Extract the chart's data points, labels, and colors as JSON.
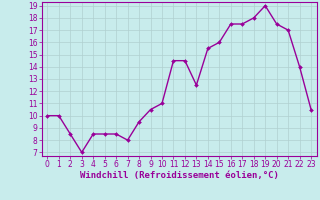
{
  "x": [
    0,
    1,
    2,
    3,
    4,
    5,
    6,
    7,
    8,
    9,
    10,
    11,
    12,
    13,
    14,
    15,
    16,
    17,
    18,
    19,
    20,
    21,
    22,
    23
  ],
  "y": [
    10,
    10,
    8.5,
    7,
    8.5,
    8.5,
    8.5,
    8,
    9.5,
    10.5,
    11,
    14.5,
    14.5,
    12.5,
    15.5,
    16,
    17.5,
    17.5,
    18,
    19,
    17.5,
    17,
    14,
    10.5
  ],
  "line_color": "#990099",
  "marker": "D",
  "marker_size": 2,
  "bg_color": "#c8ecec",
  "grid_color": "#b0d0d0",
  "xlabel": "Windchill (Refroidissement éolien,°C)",
  "xlabel_color": "#990099",
  "tick_color": "#990099",
  "ylim": [
    7,
    19
  ],
  "xlim": [
    -0.5,
    23.5
  ],
  "yticks": [
    7,
    8,
    9,
    10,
    11,
    12,
    13,
    14,
    15,
    16,
    17,
    18,
    19
  ],
  "xticks": [
    0,
    1,
    2,
    3,
    4,
    5,
    6,
    7,
    8,
    9,
    10,
    11,
    12,
    13,
    14,
    15,
    16,
    17,
    18,
    19,
    20,
    21,
    22,
    23
  ],
  "tick_fontsize": 5.5,
  "xlabel_fontsize": 6.5,
  "line_width": 1.0
}
